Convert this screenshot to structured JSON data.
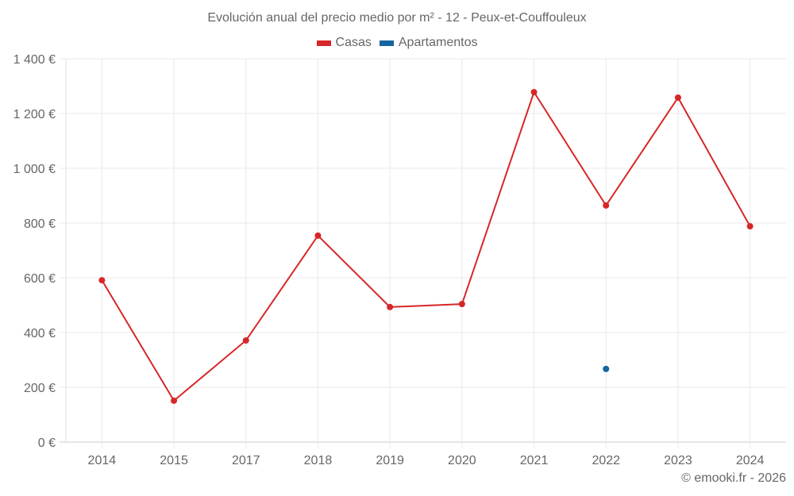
{
  "chart": {
    "title": "Evolución anual del precio medio por m² - 12 - Peux-et-Couffouleux",
    "credit": "© emooki.fr - 2026",
    "legend": [
      {
        "label": "Casas",
        "color": "#d62728"
      },
      {
        "label": "Apartamentos",
        "color": "#1565a0"
      }
    ],
    "y_ticks": [
      "0 €",
      "200 €",
      "400 €",
      "600 €",
      "800 €",
      "1 000 €",
      "1 200 €",
      "1 400 €"
    ],
    "x_ticks": [
      "2014",
      "2015",
      "2017",
      "2018",
      "2019",
      "2020",
      "2021",
      "2022",
      "2023",
      "2024"
    ]
  },
  "chart_data": {
    "type": "line",
    "title": "Evolución anual del precio medio por m² - 12 - Peux-et-Couffouleux",
    "xlabel": "",
    "ylabel": "",
    "categories": [
      "2014",
      "2015",
      "2017",
      "2018",
      "2019",
      "2020",
      "2021",
      "2022",
      "2023",
      "2024"
    ],
    "series": [
      {
        "name": "Casas",
        "color": "#d62728",
        "values": [
          591,
          151,
          371,
          754,
          493,
          504,
          1278,
          864,
          1258,
          788
        ]
      },
      {
        "name": "Apartamentos",
        "color": "#1565a0",
        "values": [
          null,
          null,
          null,
          null,
          null,
          null,
          null,
          267,
          null,
          null
        ]
      }
    ],
    "ylim": [
      0,
      1400
    ],
    "y_unit": "€",
    "grid": true,
    "legend_position": "top"
  }
}
